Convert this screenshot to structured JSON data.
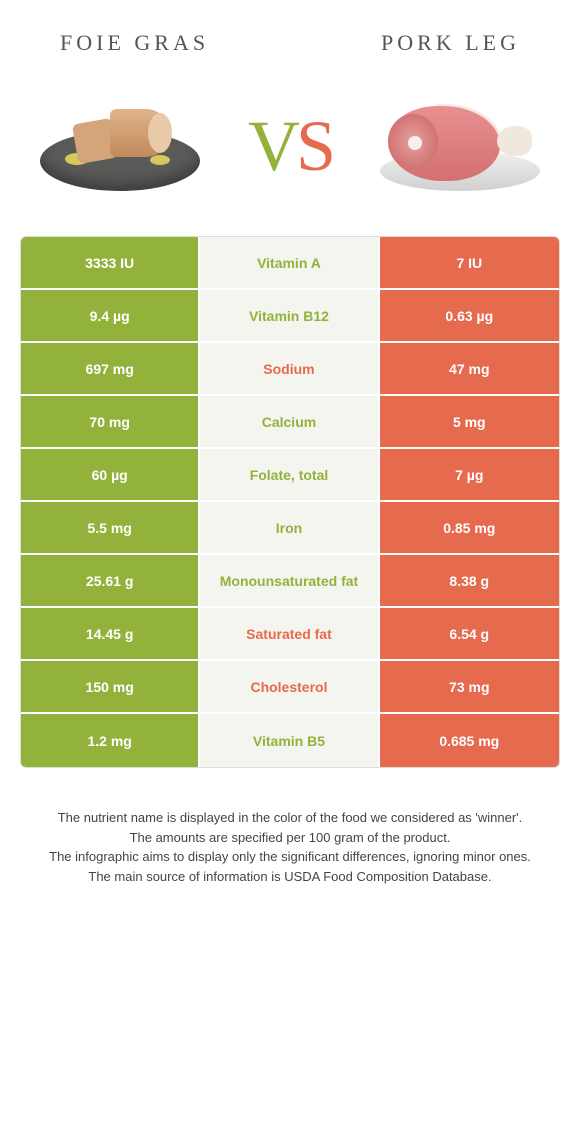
{
  "header": {
    "left_title": "Foie gras",
    "right_title": "Pork leg"
  },
  "vs": {
    "v": "V",
    "s": "S"
  },
  "colors": {
    "left": "#93b23c",
    "right": "#e66a4e",
    "mid_bg": "#f5f5f0"
  },
  "rows": [
    {
      "left": "3333 IU",
      "mid": "Vitamin A",
      "right": "7 IU",
      "winner": "left"
    },
    {
      "left": "9.4 µg",
      "mid": "Vitamin B12",
      "right": "0.63 µg",
      "winner": "left"
    },
    {
      "left": "697 mg",
      "mid": "Sodium",
      "right": "47 mg",
      "winner": "right"
    },
    {
      "left": "70 mg",
      "mid": "Calcium",
      "right": "5 mg",
      "winner": "left"
    },
    {
      "left": "60 µg",
      "mid": "Folate, total",
      "right": "7 µg",
      "winner": "left"
    },
    {
      "left": "5.5 mg",
      "mid": "Iron",
      "right": "0.85 mg",
      "winner": "left"
    },
    {
      "left": "25.61 g",
      "mid": "Monounsaturated fat",
      "right": "8.38 g",
      "winner": "left"
    },
    {
      "left": "14.45 g",
      "mid": "Saturated fat",
      "right": "6.54 g",
      "winner": "right"
    },
    {
      "left": "150 mg",
      "mid": "Cholesterol",
      "right": "73 mg",
      "winner": "right"
    },
    {
      "left": "1.2 mg",
      "mid": "Vitamin B5",
      "right": "0.685 mg",
      "winner": "left"
    }
  ],
  "footer": {
    "line1": "The nutrient name is displayed in the color of the food we considered as 'winner'.",
    "line2": "The amounts are specified per 100 gram of the product.",
    "line3": "The infographic aims to display only the significant differences, ignoring minor ones.",
    "line4": "The main source of information is USDA Food Composition Database."
  }
}
